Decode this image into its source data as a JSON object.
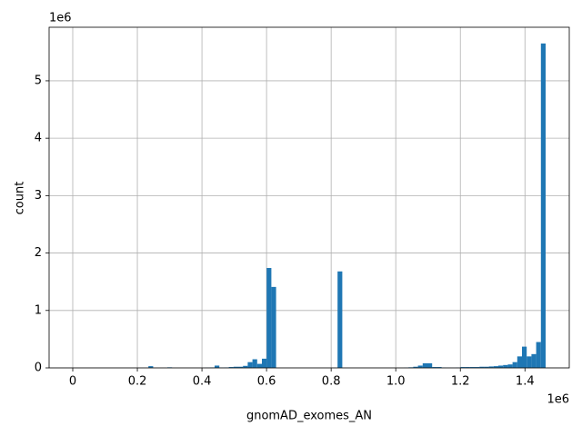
{
  "chart_data": {
    "type": "histogram",
    "x_label": "gnomAD_exomes_AN",
    "y_label": "count",
    "x_offset_label": "1e6",
    "y_offset_label": "1e6",
    "color": "#1f77b4",
    "grid": true,
    "bins": [
      0,
      14640,
      29280,
      43920,
      58560,
      73200,
      87840,
      102480,
      117120,
      131760,
      146400,
      161040,
      175680,
      190320,
      204960,
      219600,
      234240,
      248880,
      263520,
      278160,
      292800,
      307440,
      322080,
      336720,
      351360,
      366000,
      380640,
      395280,
      409920,
      424560,
      439200,
      453840,
      468480,
      483120,
      497760,
      512400,
      527040,
      541680,
      556320,
      570960,
      585600,
      600240,
      614880,
      629520,
      644160,
      658800,
      673440,
      688080,
      702720,
      717360,
      732000,
      746640,
      761280,
      775920,
      790560,
      805200,
      819840,
      834480,
      849120,
      863760,
      878400,
      893040,
      907680,
      922320,
      936960,
      951600,
      966240,
      980880,
      995520,
      1010160,
      1024800,
      1039440,
      1054080,
      1068720,
      1083360,
      1098000,
      1112640,
      1127280,
      1141920,
      1156560,
      1171200,
      1185840,
      1200480,
      1215120,
      1229760,
      1244400,
      1259040,
      1273680,
      1288320,
      1302960,
      1317600,
      1332240,
      1346880,
      1361520,
      1376160,
      1390800,
      1405440,
      1420080,
      1434720,
      1449360,
      1464000
    ],
    "counts": [
      0,
      0,
      0,
      0,
      0,
      0,
      0,
      0,
      0,
      0,
      0,
      0,
      0,
      0,
      0,
      0,
      30000,
      0,
      0,
      0,
      10000,
      0,
      0,
      0,
      0,
      0,
      0,
      0,
      3000,
      8000,
      40000,
      5000,
      8000,
      15000,
      20000,
      20000,
      35000,
      100000,
      150000,
      70000,
      160000,
      1740000,
      1410000,
      0,
      0,
      0,
      0,
      0,
      0,
      0,
      0,
      0,
      0,
      0,
      0,
      0,
      1680000,
      0,
      0,
      0,
      0,
      0,
      0,
      0,
      0,
      0,
      0,
      0,
      0,
      0,
      3000,
      10000,
      20000,
      40000,
      80000,
      80000,
      15000,
      15000,
      5000,
      3000,
      2000,
      5000,
      15000,
      15000,
      15000,
      15000,
      20000,
      20000,
      25000,
      30000,
      40000,
      50000,
      60000,
      100000,
      200000,
      370000,
      200000,
      240000,
      450000,
      5650000
    ],
    "xlim": [
      -73200,
      1537200
    ],
    "xticks": [
      0,
      {
        "value": 200000,
        "label": "0.2"
      },
      {
        "value": 400000,
        "label": "0.4"
      },
      {
        "value": 600000,
        "label": "0.6"
      },
      {
        "value": 800000,
        "label": "0.8"
      },
      {
        "value": 1000000,
        "label": "1.0"
      },
      {
        "value": 1200000,
        "label": "1.2"
      },
      {
        "value": 1400000,
        "label": "1.4"
      }
    ],
    "ylim": [
      0,
      5932500
    ],
    "yticks": [
      0,
      {
        "value": 1000000,
        "label": "1"
      },
      {
        "value": 2000000,
        "label": "2"
      },
      {
        "value": 3000000,
        "label": "3"
      },
      {
        "value": 4000000,
        "label": "4"
      },
      {
        "value": 5000000,
        "label": "5"
      }
    ]
  }
}
